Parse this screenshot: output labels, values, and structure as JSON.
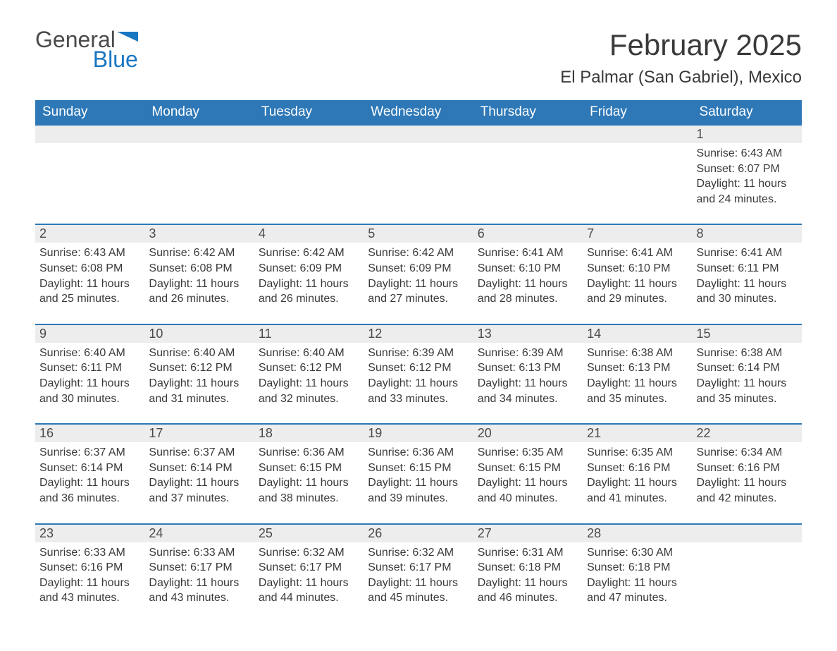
{
  "logo": {
    "word1": "General",
    "word2": "Blue"
  },
  "title": "February 2025",
  "location": "El Palmar (San Gabriel), Mexico",
  "colors": {
    "header_bg": "#2e78b7",
    "header_text": "#ffffff",
    "daynum_bg": "#ededed",
    "daynum_border": "#2e78b7",
    "body_text": "#3a3a3a",
    "logo_gray": "#4a4a4a",
    "logo_blue": "#1976c1",
    "page_bg": "#ffffff"
  },
  "typography": {
    "title_fontsize": 42,
    "location_fontsize": 24,
    "weekday_fontsize": 19,
    "daynum_fontsize": 18,
    "detail_fontsize": 16,
    "font_family": "Segoe UI"
  },
  "weekdays": [
    "Sunday",
    "Monday",
    "Tuesday",
    "Wednesday",
    "Thursday",
    "Friday",
    "Saturday"
  ],
  "weeks": [
    [
      null,
      null,
      null,
      null,
      null,
      null,
      {
        "day": "1",
        "sunrise": "Sunrise: 6:43 AM",
        "sunset": "Sunset: 6:07 PM",
        "daylight": "Daylight: 11 hours and 24 minutes."
      }
    ],
    [
      {
        "day": "2",
        "sunrise": "Sunrise: 6:43 AM",
        "sunset": "Sunset: 6:08 PM",
        "daylight": "Daylight: 11 hours and 25 minutes."
      },
      {
        "day": "3",
        "sunrise": "Sunrise: 6:42 AM",
        "sunset": "Sunset: 6:08 PM",
        "daylight": "Daylight: 11 hours and 26 minutes."
      },
      {
        "day": "4",
        "sunrise": "Sunrise: 6:42 AM",
        "sunset": "Sunset: 6:09 PM",
        "daylight": "Daylight: 11 hours and 26 minutes."
      },
      {
        "day": "5",
        "sunrise": "Sunrise: 6:42 AM",
        "sunset": "Sunset: 6:09 PM",
        "daylight": "Daylight: 11 hours and 27 minutes."
      },
      {
        "day": "6",
        "sunrise": "Sunrise: 6:41 AM",
        "sunset": "Sunset: 6:10 PM",
        "daylight": "Daylight: 11 hours and 28 minutes."
      },
      {
        "day": "7",
        "sunrise": "Sunrise: 6:41 AM",
        "sunset": "Sunset: 6:10 PM",
        "daylight": "Daylight: 11 hours and 29 minutes."
      },
      {
        "day": "8",
        "sunrise": "Sunrise: 6:41 AM",
        "sunset": "Sunset: 6:11 PM",
        "daylight": "Daylight: 11 hours and 30 minutes."
      }
    ],
    [
      {
        "day": "9",
        "sunrise": "Sunrise: 6:40 AM",
        "sunset": "Sunset: 6:11 PM",
        "daylight": "Daylight: 11 hours and 30 minutes."
      },
      {
        "day": "10",
        "sunrise": "Sunrise: 6:40 AM",
        "sunset": "Sunset: 6:12 PM",
        "daylight": "Daylight: 11 hours and 31 minutes."
      },
      {
        "day": "11",
        "sunrise": "Sunrise: 6:40 AM",
        "sunset": "Sunset: 6:12 PM",
        "daylight": "Daylight: 11 hours and 32 minutes."
      },
      {
        "day": "12",
        "sunrise": "Sunrise: 6:39 AM",
        "sunset": "Sunset: 6:12 PM",
        "daylight": "Daylight: 11 hours and 33 minutes."
      },
      {
        "day": "13",
        "sunrise": "Sunrise: 6:39 AM",
        "sunset": "Sunset: 6:13 PM",
        "daylight": "Daylight: 11 hours and 34 minutes."
      },
      {
        "day": "14",
        "sunrise": "Sunrise: 6:38 AM",
        "sunset": "Sunset: 6:13 PM",
        "daylight": "Daylight: 11 hours and 35 minutes."
      },
      {
        "day": "15",
        "sunrise": "Sunrise: 6:38 AM",
        "sunset": "Sunset: 6:14 PM",
        "daylight": "Daylight: 11 hours and 35 minutes."
      }
    ],
    [
      {
        "day": "16",
        "sunrise": "Sunrise: 6:37 AM",
        "sunset": "Sunset: 6:14 PM",
        "daylight": "Daylight: 11 hours and 36 minutes."
      },
      {
        "day": "17",
        "sunrise": "Sunrise: 6:37 AM",
        "sunset": "Sunset: 6:14 PM",
        "daylight": "Daylight: 11 hours and 37 minutes."
      },
      {
        "day": "18",
        "sunrise": "Sunrise: 6:36 AM",
        "sunset": "Sunset: 6:15 PM",
        "daylight": "Daylight: 11 hours and 38 minutes."
      },
      {
        "day": "19",
        "sunrise": "Sunrise: 6:36 AM",
        "sunset": "Sunset: 6:15 PM",
        "daylight": "Daylight: 11 hours and 39 minutes."
      },
      {
        "day": "20",
        "sunrise": "Sunrise: 6:35 AM",
        "sunset": "Sunset: 6:15 PM",
        "daylight": "Daylight: 11 hours and 40 minutes."
      },
      {
        "day": "21",
        "sunrise": "Sunrise: 6:35 AM",
        "sunset": "Sunset: 6:16 PM",
        "daylight": "Daylight: 11 hours and 41 minutes."
      },
      {
        "day": "22",
        "sunrise": "Sunrise: 6:34 AM",
        "sunset": "Sunset: 6:16 PM",
        "daylight": "Daylight: 11 hours and 42 minutes."
      }
    ],
    [
      {
        "day": "23",
        "sunrise": "Sunrise: 6:33 AM",
        "sunset": "Sunset: 6:16 PM",
        "daylight": "Daylight: 11 hours and 43 minutes."
      },
      {
        "day": "24",
        "sunrise": "Sunrise: 6:33 AM",
        "sunset": "Sunset: 6:17 PM",
        "daylight": "Daylight: 11 hours and 43 minutes."
      },
      {
        "day": "25",
        "sunrise": "Sunrise: 6:32 AM",
        "sunset": "Sunset: 6:17 PM",
        "daylight": "Daylight: 11 hours and 44 minutes."
      },
      {
        "day": "26",
        "sunrise": "Sunrise: 6:32 AM",
        "sunset": "Sunset: 6:17 PM",
        "daylight": "Daylight: 11 hours and 45 minutes."
      },
      {
        "day": "27",
        "sunrise": "Sunrise: 6:31 AM",
        "sunset": "Sunset: 6:18 PM",
        "daylight": "Daylight: 11 hours and 46 minutes."
      },
      {
        "day": "28",
        "sunrise": "Sunrise: 6:30 AM",
        "sunset": "Sunset: 6:18 PM",
        "daylight": "Daylight: 11 hours and 47 minutes."
      },
      null
    ]
  ]
}
